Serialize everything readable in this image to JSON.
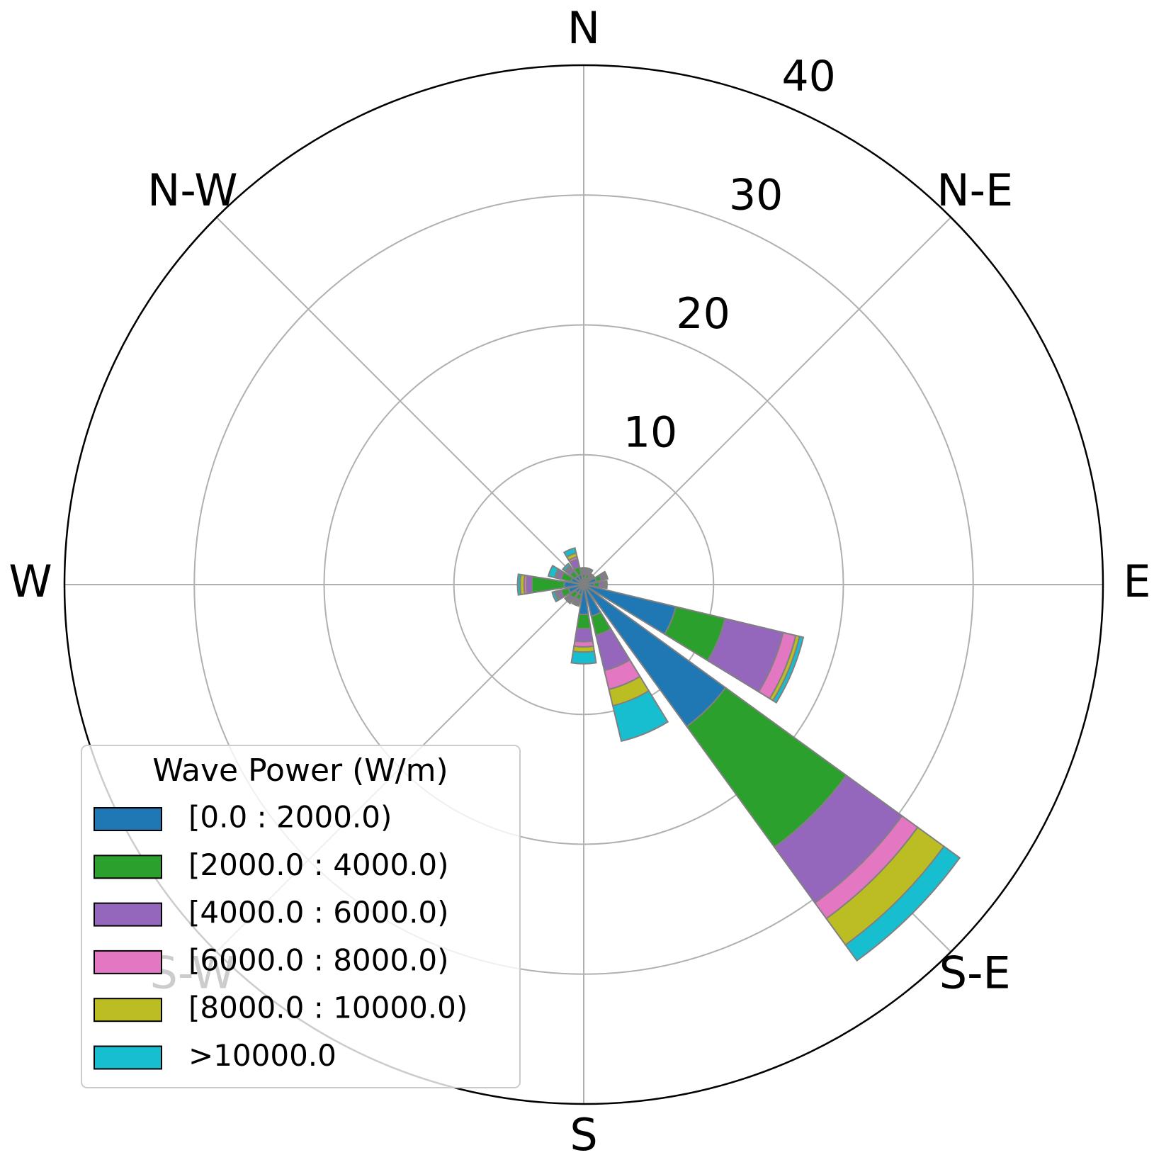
{
  "chart_data": {
    "type": "windrose",
    "x": [
      0,
      22.5,
      45,
      67.5,
      90,
      112.5,
      135,
      157.5,
      180,
      202.5,
      225,
      247.5,
      270,
      292.5,
      315,
      337.5
    ],
    "xticks": [
      {
        "value": 0,
        "label": "N"
      },
      {
        "value": 45,
        "label": "N-E"
      },
      {
        "value": 90,
        "label": "E"
      },
      {
        "value": 135,
        "label": "S-E"
      },
      {
        "value": 180,
        "label": "S"
      },
      {
        "value": 225,
        "label": "S-W"
      },
      {
        "value": 270,
        "label": "W"
      },
      {
        "value": 315,
        "label": "N-W"
      }
    ],
    "ylim": [
      0,
      40
    ],
    "yticks": [
      10,
      20,
      30,
      40
    ],
    "grid": true,
    "legend": "lower left",
    "legend_title": "Wave Power (W/m)",
    "series": [
      {
        "name": "[0.0 : 2000.0)",
        "color": "#1f77b4",
        "values": [
          0.5,
          0.5,
          0.4,
          1.0,
          0.8,
          7.3,
          13.5,
          2.5,
          2.3,
          0.8,
          0.8,
          1.2,
          1.5,
          1.0,
          0.8,
          0.8
        ]
      },
      {
        "name": "[2000.0 : 4000.0)",
        "color": "#2ca02c",
        "values": [
          0.3,
          0.3,
          0.2,
          0.4,
          0.4,
          3.9,
          11.5,
          1.5,
          1.1,
          0.4,
          0.5,
          0.6,
          2.5,
          0.8,
          0.5,
          0.6
        ]
      },
      {
        "name": "[4000.0 : 6000.0)",
        "color": "#9467bd",
        "values": [
          0.2,
          0.2,
          0.1,
          0.2,
          0.3,
          4.6,
          5.3,
          2.8,
          1.0,
          0.2,
          0.2,
          0.3,
          0.4,
          0.3,
          0.3,
          0.6
        ]
      },
      {
        "name": "[6000.0 : 8000.0)",
        "color": "#e377c2",
        "values": [
          0.1,
          0.1,
          0.1,
          0.1,
          0.1,
          1.0,
          1.5,
          1.5,
          0.4,
          0.1,
          0.1,
          0.1,
          0.2,
          0.1,
          0.1,
          0.2
        ]
      },
      {
        "name": "[8000.0 : 10000.0)",
        "color": "#bcbd22",
        "values": [
          0.1,
          0.1,
          0.1,
          0.1,
          0.1,
          0.3,
          2.5,
          1.3,
          0.4,
          0.1,
          0.1,
          0.1,
          0.3,
          0.1,
          0.1,
          0.3
        ]
      },
      {
        "name": ">10000.0",
        "color": "#17becf",
        "values": [
          0.1,
          0.1,
          0.1,
          0.1,
          0.1,
          0.3,
          1.5,
          2.8,
          0.9,
          0.1,
          0.1,
          0.2,
          0.2,
          0.5,
          0.2,
          0.4
        ]
      }
    ]
  }
}
